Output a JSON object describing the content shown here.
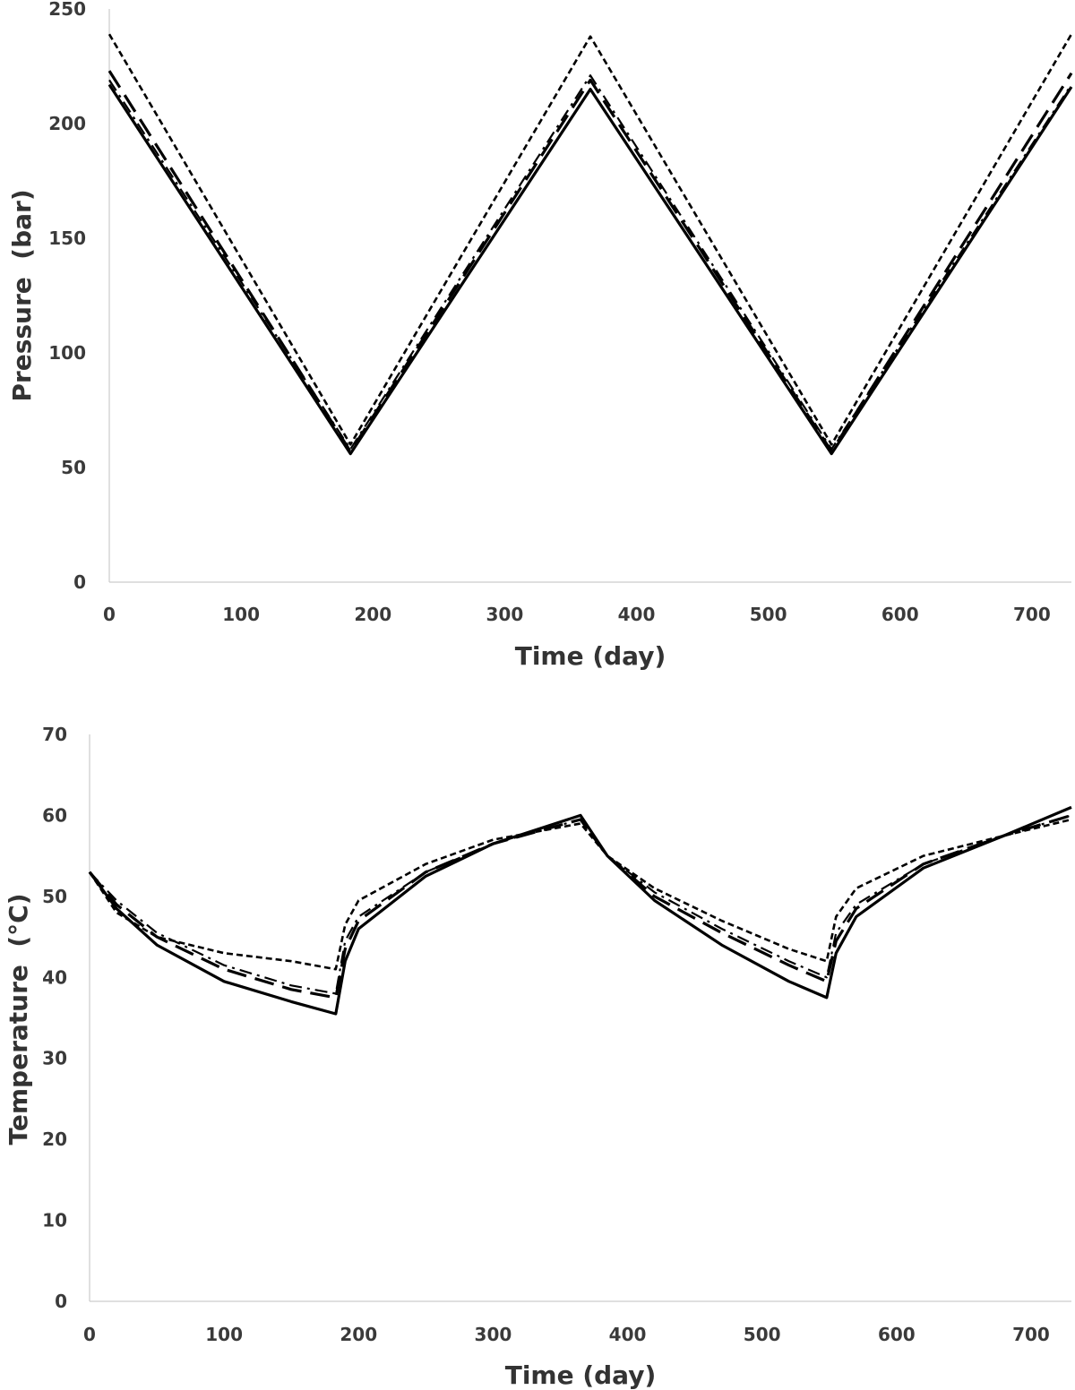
{
  "chart_data": [
    {
      "type": "line",
      "title": "",
      "xlabel": "Time (day)",
      "ylabel": "Pressure  (bar)",
      "xlim": [
        0,
        730
      ],
      "ylim": [
        0,
        250
      ],
      "xticks": [
        0,
        100,
        200,
        300,
        400,
        500,
        600,
        700
      ],
      "yticks": [
        0,
        50,
        100,
        150,
        200,
        250
      ],
      "grid": false,
      "legend": "none",
      "series": [
        {
          "style": "solid",
          "x": [
            0,
            183,
            365,
            548,
            730
          ],
          "y": [
            217,
            56,
            215,
            56,
            216
          ]
        },
        {
          "style": "long-dash",
          "x": [
            0,
            183,
            365,
            548,
            730
          ],
          "y": [
            223,
            57,
            219,
            57,
            222
          ]
        },
        {
          "style": "dash-dot",
          "x": [
            0,
            183,
            365,
            548,
            730
          ],
          "y": [
            219,
            58,
            221,
            58,
            217
          ]
        },
        {
          "style": "short-dash",
          "x": [
            0,
            183,
            365,
            548,
            730
          ],
          "y": [
            239,
            60,
            238,
            60,
            239
          ]
        }
      ]
    },
    {
      "type": "line",
      "title": "",
      "xlabel": "Time (day)",
      "ylabel": "Temperature  (°C)",
      "xlim": [
        0,
        730
      ],
      "ylim": [
        0,
        70
      ],
      "xticks": [
        0,
        100,
        200,
        300,
        400,
        500,
        600,
        700
      ],
      "yticks": [
        0,
        10,
        20,
        30,
        40,
        50,
        60,
        70
      ],
      "grid": false,
      "legend": "none",
      "series": [
        {
          "style": "solid",
          "x": [
            0,
            20,
            50,
            100,
            150,
            183,
            190,
            200,
            250,
            300,
            365,
            385,
            420,
            470,
            520,
            548,
            555,
            570,
            620,
            680,
            730
          ],
          "y": [
            53,
            48.5,
            44,
            39.5,
            37,
            35.5,
            42,
            46,
            52.5,
            56.5,
            60,
            55,
            49.5,
            44,
            39.5,
            37.5,
            43,
            47.5,
            53.5,
            57.5,
            61
          ]
        },
        {
          "style": "long-dash",
          "x": [
            0,
            20,
            50,
            100,
            150,
            183,
            190,
            200,
            250,
            300,
            365,
            385,
            420,
            470,
            520,
            548,
            555,
            570,
            620,
            680,
            730
          ],
          "y": [
            53,
            49,
            45,
            41,
            38.5,
            37.5,
            43.5,
            47,
            53,
            56.5,
            59.5,
            55,
            50,
            45.5,
            41.5,
            39.5,
            44.5,
            48.5,
            54,
            57.5,
            60
          ]
        },
        {
          "style": "dash-dot",
          "x": [
            0,
            20,
            50,
            100,
            150,
            183,
            190,
            200,
            250,
            300,
            365,
            385,
            420,
            470,
            520,
            548,
            555,
            570,
            620,
            680,
            730
          ],
          "y": [
            53,
            49.5,
            45.5,
            41.5,
            39,
            38,
            44.5,
            47.5,
            53,
            56.5,
            59.5,
            55,
            50.5,
            46,
            42,
            40,
            45.5,
            49,
            54,
            57.5,
            60
          ]
        },
        {
          "style": "short-dash",
          "x": [
            0,
            20,
            50,
            100,
            150,
            183,
            190,
            200,
            250,
            300,
            365,
            385,
            420,
            470,
            520,
            548,
            555,
            570,
            620,
            680,
            730
          ],
          "y": [
            53,
            48,
            45,
            43,
            42,
            41,
            46.5,
            49.5,
            54,
            57,
            59,
            55,
            51,
            47,
            43.5,
            42,
            47.5,
            51,
            55,
            57.5,
            59.5
          ]
        }
      ]
    }
  ]
}
